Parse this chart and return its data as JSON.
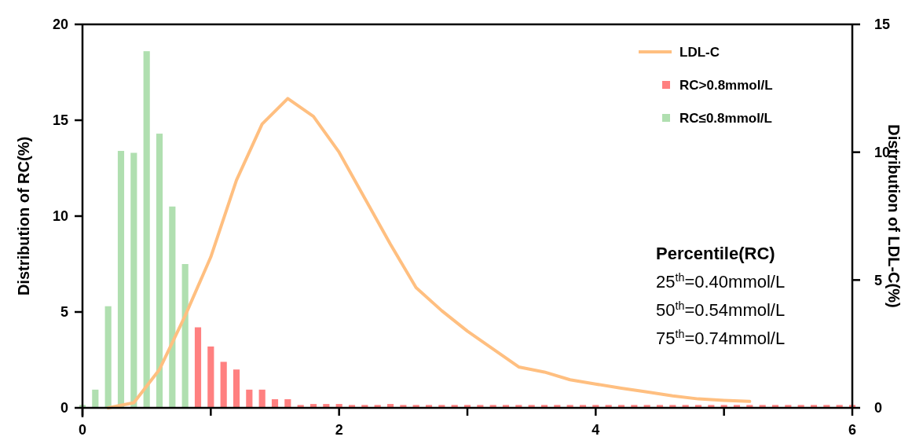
{
  "chart_data": {
    "type": "bar",
    "ylabel": "Distribution of RC(%)",
    "y2label": "Distribution of LDL-C(%)",
    "xlim": [
      0,
      6
    ],
    "xticks": [
      0,
      {
        "value": 1,
        "label": null
      },
      2,
      {
        "value": 3,
        "label": null
      },
      4,
      {
        "value": 5,
        "label": null
      },
      6
    ],
    "ylim": [
      0,
      20
    ],
    "yticks": [
      0,
      5,
      10,
      15,
      20
    ],
    "y2lim": [
      0,
      15
    ],
    "y2ticks": [
      0,
      5,
      10,
      15
    ],
    "grid": false,
    "legend": "top right",
    "series": [
      {
        "name": "LDL-C",
        "type": "line",
        "axis": "y2",
        "color": "#ffbf80",
        "x": [
          0.2,
          0.4,
          0.6,
          0.8,
          1,
          1.2,
          1.4,
          1.6,
          1.8,
          2,
          2.2,
          2.4,
          2.6,
          2.8,
          3,
          3.2,
          3.4,
          3.6,
          3.8,
          4,
          4.2,
          4.4,
          4.6,
          4.8,
          5,
          5.2
        ],
        "values": [
          0,
          0.2,
          1.5,
          3.6,
          5.9,
          8.9,
          11.1,
          12.1,
          11.4,
          10.0,
          8.2,
          6.4,
          4.7,
          3.8,
          3.0,
          2.3,
          1.6,
          1.4,
          1.1,
          0.93,
          0.77,
          0.62,
          0.47,
          0.35,
          0.29,
          0.25
        ]
      },
      {
        "name": "RC>0.8mmol/L",
        "color": "#ff8080",
        "x": [
          0.9,
          1,
          1.1,
          1.2,
          1.3,
          1.4,
          1.5,
          1.6,
          1.7,
          1.8,
          1.9,
          2,
          2.1,
          2.2,
          2.3,
          2.4,
          2.5,
          2.6,
          2.7,
          2.8,
          2.9,
          3,
          3.1,
          3.2,
          3.3,
          3.4,
          3.5,
          3.6,
          3.7,
          3.8,
          3.9,
          4,
          4.1,
          4.2,
          4.3,
          4.4,
          4.5,
          4.6,
          4.7,
          4.8,
          4.9,
          5,
          5.1,
          5.2,
          5.3,
          5.4,
          5.5,
          5.6,
          5.7,
          5.8,
          5.9,
          6
        ],
        "values": [
          4.2,
          3.2,
          2.4,
          2.0,
          0.95,
          0.95,
          0.45,
          0.45,
          0.15,
          0.2,
          0.2,
          0.2,
          0.15,
          0.15,
          0.15,
          0.2,
          0.15,
          0.15,
          0.15,
          0.15,
          0.15,
          0.15,
          0.15,
          0.15,
          0.15,
          0.15,
          0.15,
          0.15,
          0.15,
          0.15,
          0.15,
          0.15,
          0.15,
          0.15,
          0.15,
          0.15,
          0.15,
          0.15,
          0.15,
          0.15,
          0.15,
          0.15,
          0.15,
          0.15,
          0.15,
          0.15,
          0.15,
          0.15,
          0.15,
          0.15,
          0.15,
          0.15
        ]
      },
      {
        "name": "RC≤0.8mmol/L",
        "color": "#b0dfb0",
        "x": [
          0,
          0.1,
          0.2,
          0.3,
          0.4,
          0.5,
          0.6,
          0.7,
          0.8
        ],
        "values": [
          0.15,
          0.95,
          5.3,
          13.4,
          13.3,
          18.6,
          14.3,
          10.5,
          7.5
        ]
      }
    ],
    "annotations": [
      "Percentile(RC)",
      "25$^{th}$=0.40mmol/L",
      "50$^{th}$=0.54mmol/L",
      "75$^{th}$=0.74mmol/L"
    ]
  }
}
